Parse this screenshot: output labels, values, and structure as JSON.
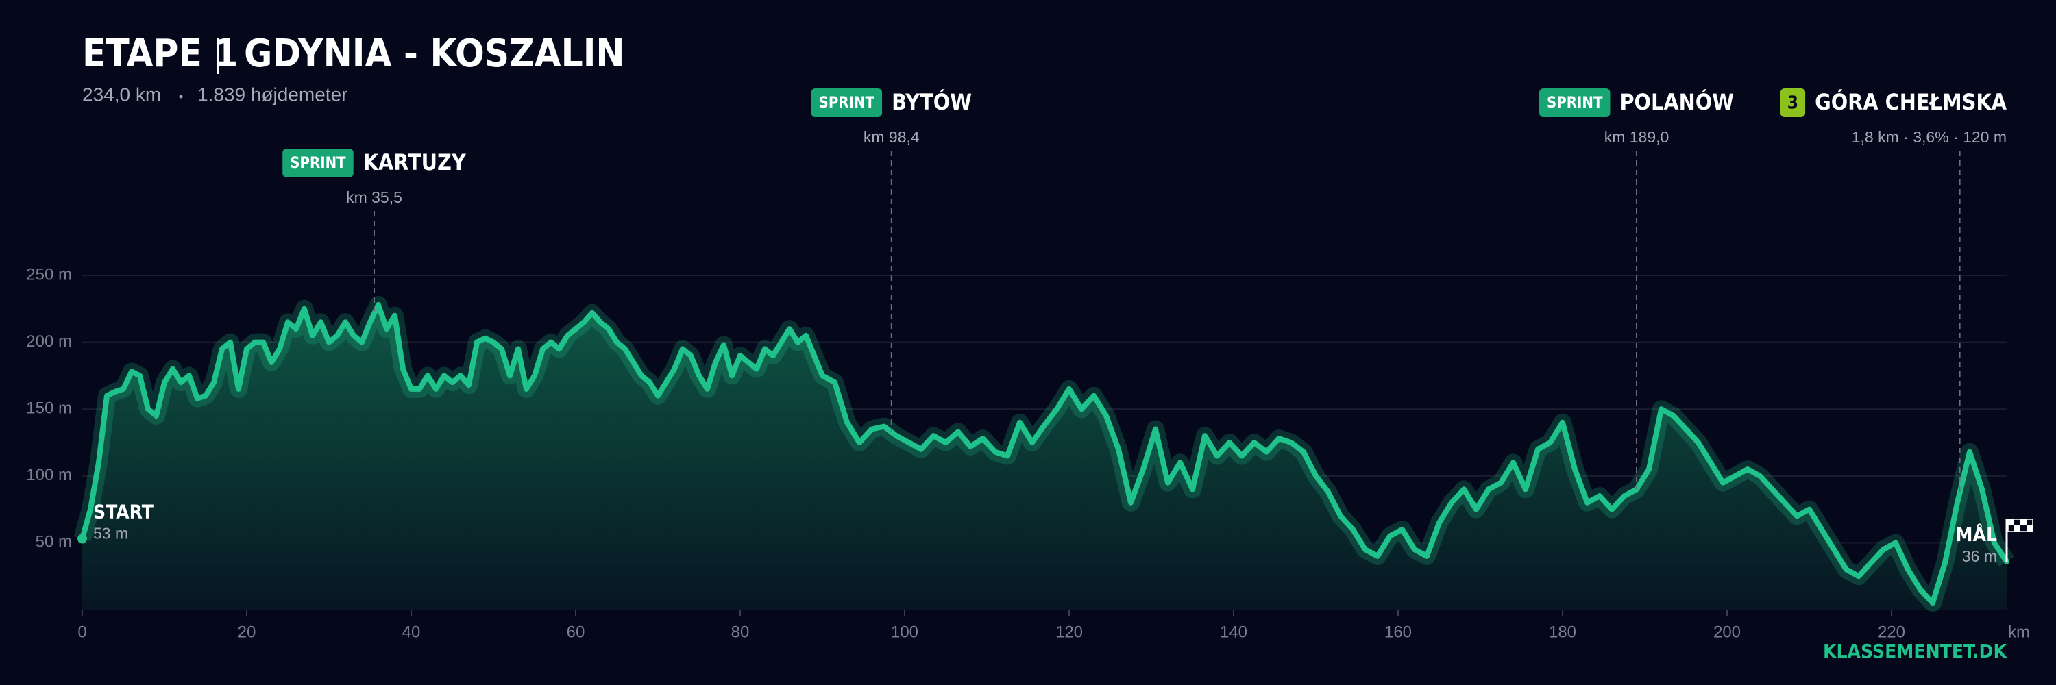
{
  "chart_data": {
    "type": "area",
    "title": "ETAPE 1",
    "subtitle": "GDYNIA - KOSZALIN",
    "distance": "234,0 km",
    "climbing": "1.839 højdemeter",
    "x": [
      0,
      1,
      2,
      3,
      4,
      5,
      6,
      7,
      8,
      9,
      10,
      11,
      12,
      13,
      14,
      15,
      16,
      17,
      18,
      19,
      20,
      21,
      22,
      23,
      24,
      25,
      26,
      27,
      28,
      29,
      30,
      31,
      32,
      33,
      34,
      35,
      36,
      37,
      38,
      39,
      40,
      41,
      42,
      43,
      44,
      45,
      46,
      47,
      48,
      49,
      50,
      51,
      52,
      53,
      54,
      55,
      56,
      57,
      58,
      59,
      60,
      61,
      62,
      63,
      64,
      65,
      66,
      67,
      68,
      69,
      70,
      71,
      72,
      73,
      74,
      75,
      76,
      77,
      78,
      79,
      80,
      81,
      82,
      83,
      84,
      85,
      86,
      87,
      88,
      89,
      90,
      91.5,
      93,
      94.5,
      96,
      97.5,
      99,
      100.5,
      102,
      103.5,
      105,
      106.5,
      108,
      109.5,
      111,
      112.5,
      114,
      115.5,
      117,
      118.5,
      120,
      121.5,
      123,
      124.5,
      126,
      127.5,
      129,
      130.5,
      132,
      133.5,
      135,
      136.5,
      138,
      139.5,
      141,
      142.5,
      144,
      145.5,
      147,
      148.5,
      150,
      151.5,
      153,
      154.5,
      156,
      157.5,
      159,
      160.5,
      162,
      163.5,
      165,
      166.5,
      168,
      169.5,
      171,
      172.5,
      174,
      175.5,
      177,
      178.5,
      180,
      181.5,
      183,
      184.5,
      186,
      187.5,
      189,
      190.5,
      192,
      193.5,
      195,
      196.5,
      198,
      199.5,
      201,
      202.5,
      204,
      205.5,
      207,
      208.5,
      210,
      211.5,
      213,
      214.5,
      216,
      217.5,
      219,
      220.5,
      222,
      223.5,
      225,
      226.5,
      228,
      229.5,
      231,
      232.5,
      234
    ],
    "values": [
      53,
      75,
      110,
      160,
      163,
      165,
      178,
      175,
      150,
      145,
      170,
      180,
      170,
      175,
      158,
      160,
      170,
      195,
      200,
      165,
      195,
      200,
      200,
      185,
      195,
      215,
      210,
      225,
      205,
      215,
      200,
      205,
      215,
      205,
      200,
      215,
      228,
      210,
      220,
      180,
      165,
      165,
      175,
      165,
      175,
      170,
      175,
      168,
      200,
      203,
      200,
      195,
      175,
      195,
      165,
      175,
      195,
      200,
      195,
      205,
      210,
      215,
      222,
      215,
      210,
      200,
      195,
      185,
      175,
      170,
      160,
      170,
      180,
      195,
      190,
      175,
      165,
      185,
      198,
      175,
      190,
      185,
      180,
      195,
      190,
      200,
      210,
      200,
      205,
      190,
      175,
      170,
      140,
      125,
      135,
      137,
      130,
      125,
      120,
      130,
      125,
      133,
      122,
      128,
      118,
      115,
      140,
      125,
      138,
      150,
      165,
      150,
      160,
      145,
      120,
      80,
      105,
      135,
      95,
      110,
      90,
      130,
      115,
      125,
      115,
      125,
      118,
      128,
      125,
      118,
      100,
      88,
      70,
      60,
      45,
      40,
      55,
      60,
      45,
      40,
      65,
      80,
      90,
      75,
      90,
      95,
      110,
      90,
      120,
      125,
      140,
      105,
      80,
      85,
      75,
      85,
      90,
      105,
      150,
      145,
      135,
      125,
      110,
      95,
      100,
      105,
      100,
      90,
      80,
      70,
      75,
      60,
      45,
      30,
      25,
      35,
      45,
      50,
      30,
      15,
      5,
      35,
      80,
      118,
      90,
      50,
      36
    ],
    "color": "#1fc28a",
    "xlim": [
      0,
      234
    ],
    "ylim": [
      0,
      250
    ],
    "xticks": [
      0,
      20,
      40,
      60,
      80,
      100,
      120,
      140,
      160,
      180,
      200,
      220
    ],
    "yticks": [
      {
        "value": 50,
        "label": "50 m"
      },
      {
        "value": 100,
        "label": "100 m"
      },
      {
        "value": 150,
        "label": "150 m"
      },
      {
        "value": 200,
        "label": "200 m"
      },
      {
        "value": 250,
        "label": "250 m"
      }
    ],
    "xlabel": "km",
    "grid": true,
    "start": {
      "label": "START",
      "elevation": "53 m"
    },
    "finish": {
      "label": "MÅL",
      "elevation": "36 m"
    },
    "markers": [
      {
        "badge": "SPRINT",
        "name": "KARTUZY",
        "detail": "km 35,5",
        "km": 35.5
      },
      {
        "badge": "SPRINT",
        "name": "BYTÓW",
        "detail": "km 98,4",
        "km": 98.4
      },
      {
        "badge": "SPRINT",
        "name": "POLANÓW",
        "detail": "km 189,0",
        "km": 189.0
      },
      {
        "badge": "3",
        "name": "GÓRA CHEŁMSKA",
        "detail": "1,8 km · 3,6% · 120 m",
        "km": 228.3
      }
    ],
    "brand": "KLASSEMENTET.DK"
  }
}
